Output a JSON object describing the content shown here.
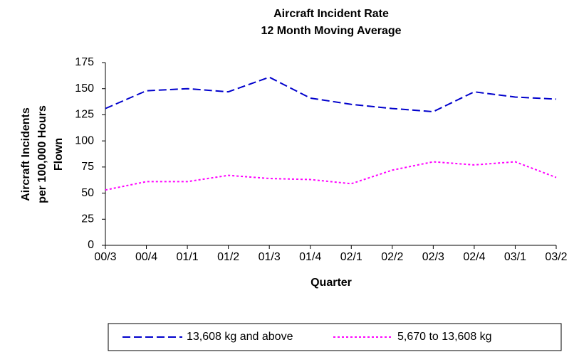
{
  "chart_data": {
    "type": "line",
    "title": "Aircraft Incident Rate",
    "subtitle": "12 Month Moving Average",
    "xlabel": "Quarter",
    "ylabel": [
      "Aircraft Incidents",
      "per 100,000 Hours",
      "Flown"
    ],
    "categories": [
      "00/3",
      "00/4",
      "01/1",
      "01/2",
      "01/3",
      "01/4",
      "02/1",
      "02/2",
      "02/3",
      "02/4",
      "03/1",
      "03/2"
    ],
    "series": [
      {
        "name": "13,608 kg and above",
        "color": "#0000cc",
        "dash": "dashed",
        "values": [
          131,
          148,
          150,
          147,
          161,
          141,
          135,
          131,
          128,
          147,
          142,
          140
        ]
      },
      {
        "name": "5,670 to 13,608 kg",
        "color": "#ff00ff",
        "dash": "dotted",
        "values": [
          53,
          61,
          61,
          67,
          64,
          63,
          59,
          72,
          80,
          77,
          80,
          65
        ]
      }
    ],
    "ylim": [
      0,
      175
    ],
    "yticks": [
      0,
      25,
      50,
      75,
      100,
      125,
      150,
      175
    ],
    "grid": false,
    "legend": "bottom"
  }
}
